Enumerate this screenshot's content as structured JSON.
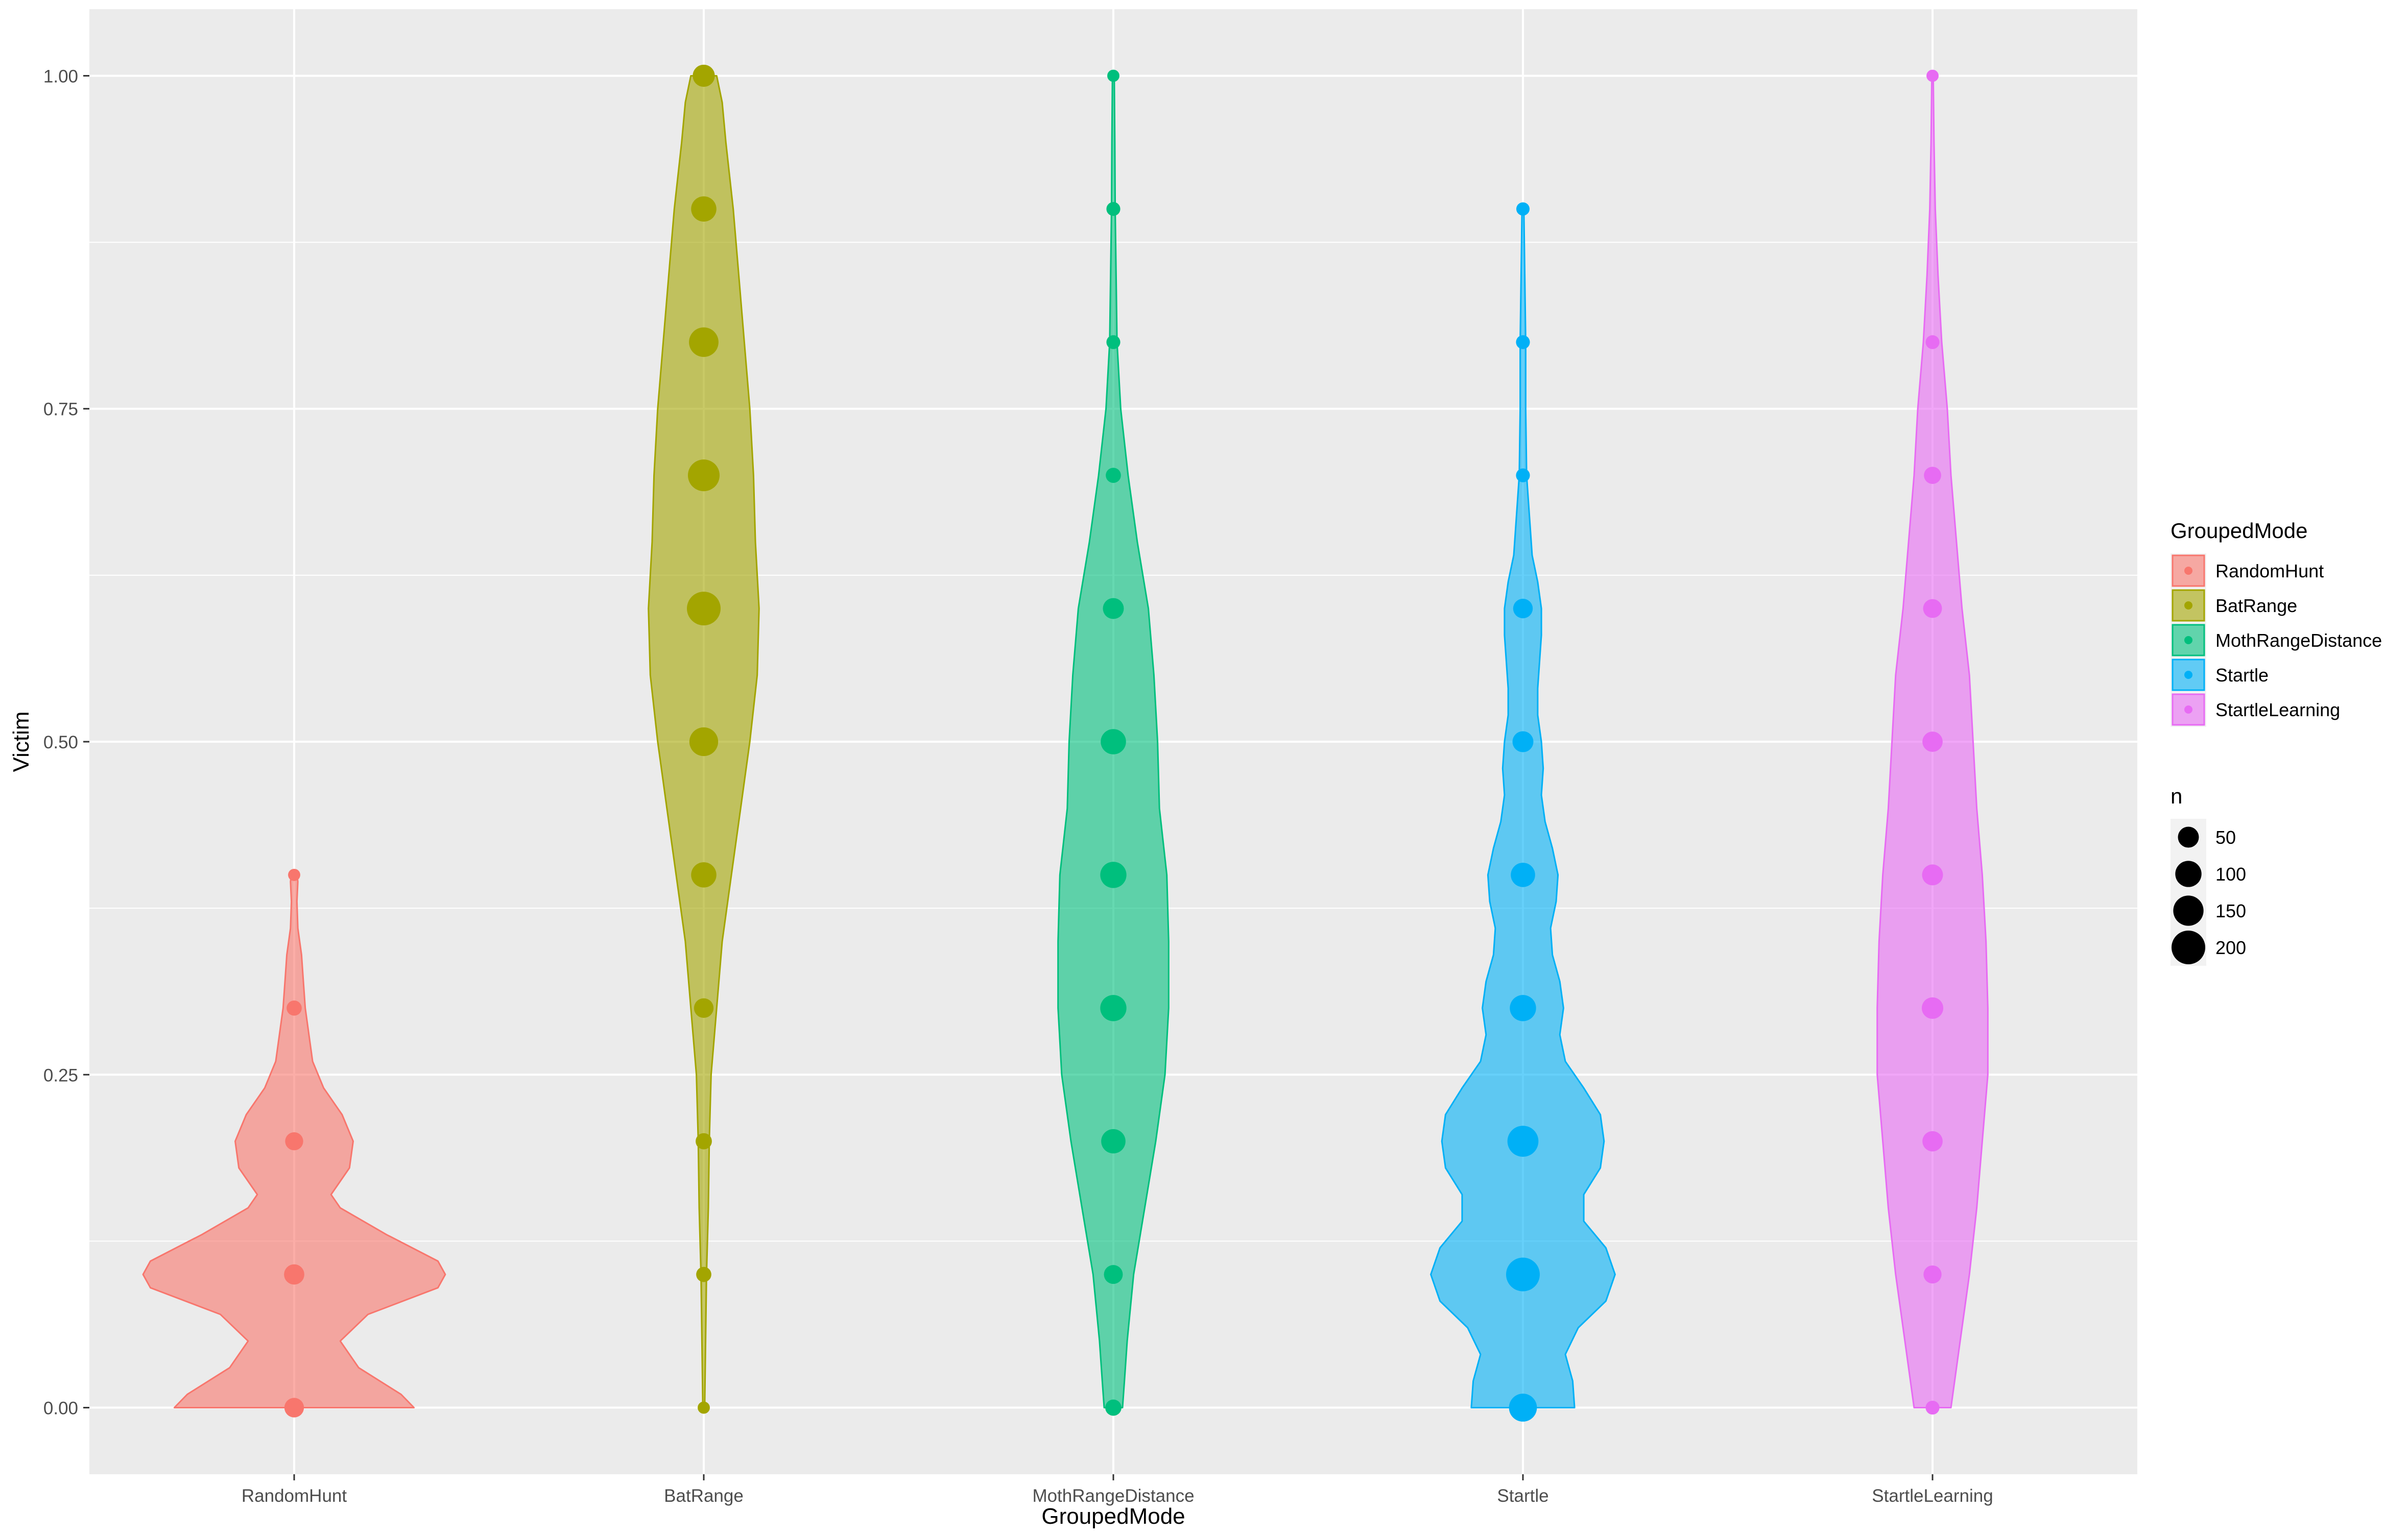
{
  "chart_data": {
    "type": "violin",
    "title": "",
    "xlabel": "GroupedMode",
    "ylabel": "Victim",
    "ylim": [
      -0.05,
      1.05
    ],
    "yticks": [
      0.0,
      0.25,
      0.5,
      0.75,
      1.0
    ],
    "ytick_labels": [
      "0.00",
      "0.25",
      "0.50",
      "0.75",
      "1.00"
    ],
    "grid": true,
    "legend_position": "right",
    "categories": [
      "RandomHunt",
      "BatRange",
      "MothRangeDistance",
      "Startle",
      "StartleLearning"
    ],
    "colors": {
      "RandomHunt": "#F8766D",
      "BatRange": "#A3A500",
      "MothRangeDistance": "#00BF7D",
      "Startle": "#00B0F6",
      "StartleLearning": "#E76BF3"
    },
    "series": [
      {
        "name": "RandomHunt",
        "points": [
          {
            "y": 0.0,
            "n": 40
          },
          {
            "y": 0.1,
            "n": 45
          },
          {
            "y": 0.2,
            "n": 30
          },
          {
            "y": 0.3,
            "n": 15
          },
          {
            "y": 0.4,
            "n": 5
          }
        ],
        "density": [
          [
            0.0,
            0.65
          ],
          [
            0.01,
            0.58
          ],
          [
            0.03,
            0.35
          ],
          [
            0.05,
            0.25
          ],
          [
            0.07,
            0.4
          ],
          [
            0.09,
            0.78
          ],
          [
            0.1,
            0.82
          ],
          [
            0.11,
            0.78
          ],
          [
            0.13,
            0.5
          ],
          [
            0.15,
            0.25
          ],
          [
            0.16,
            0.2
          ],
          [
            0.18,
            0.3
          ],
          [
            0.2,
            0.32
          ],
          [
            0.22,
            0.26
          ],
          [
            0.24,
            0.16
          ],
          [
            0.26,
            0.1
          ],
          [
            0.28,
            0.08
          ],
          [
            0.3,
            0.06
          ],
          [
            0.32,
            0.05
          ],
          [
            0.34,
            0.04
          ],
          [
            0.36,
            0.02
          ],
          [
            0.38,
            0.015
          ],
          [
            0.395,
            0.02
          ],
          [
            0.4,
            0.015
          ]
        ]
      },
      {
        "name": "BatRange",
        "points": [
          {
            "y": 0.0,
            "n": 5
          },
          {
            "y": 0.1,
            "n": 15
          },
          {
            "y": 0.2,
            "n": 20
          },
          {
            "y": 0.3,
            "n": 40
          },
          {
            "y": 0.4,
            "n": 90
          },
          {
            "y": 0.5,
            "n": 130
          },
          {
            "y": 0.6,
            "n": 200
          },
          {
            "y": 0.7,
            "n": 170
          },
          {
            "y": 0.8,
            "n": 140
          },
          {
            "y": 0.9,
            "n": 90
          },
          {
            "y": 1.0,
            "n": 60
          }
        ],
        "density": [
          [
            0.0,
            0.005
          ],
          [
            0.05,
            0.01
          ],
          [
            0.1,
            0.015
          ],
          [
            0.15,
            0.025
          ],
          [
            0.2,
            0.03
          ],
          [
            0.25,
            0.04
          ],
          [
            0.3,
            0.07
          ],
          [
            0.35,
            0.1
          ],
          [
            0.4,
            0.15
          ],
          [
            0.45,
            0.2
          ],
          [
            0.5,
            0.25
          ],
          [
            0.55,
            0.29
          ],
          [
            0.6,
            0.3
          ],
          [
            0.65,
            0.28
          ],
          [
            0.7,
            0.27
          ],
          [
            0.75,
            0.25
          ],
          [
            0.8,
            0.22
          ],
          [
            0.85,
            0.19
          ],
          [
            0.9,
            0.16
          ],
          [
            0.95,
            0.12
          ],
          [
            0.98,
            0.1
          ],
          [
            1.0,
            0.07
          ]
        ]
      },
      {
        "name": "MothRangeDistance",
        "points": [
          {
            "y": 0.0,
            "n": 20
          },
          {
            "y": 0.1,
            "n": 35
          },
          {
            "y": 0.2,
            "n": 80
          },
          {
            "y": 0.3,
            "n": 100
          },
          {
            "y": 0.4,
            "n": 100
          },
          {
            "y": 0.5,
            "n": 90
          },
          {
            "y": 0.6,
            "n": 50
          },
          {
            "y": 0.7,
            "n": 15
          },
          {
            "y": 0.8,
            "n": 10
          },
          {
            "y": 0.9,
            "n": 10
          },
          {
            "y": 1.0,
            "n": 5
          }
        ],
        "density": [
          [
            0.0,
            0.05
          ],
          [
            0.02,
            0.06
          ],
          [
            0.05,
            0.075
          ],
          [
            0.1,
            0.11
          ],
          [
            0.15,
            0.17
          ],
          [
            0.2,
            0.23
          ],
          [
            0.25,
            0.28
          ],
          [
            0.3,
            0.3
          ],
          [
            0.35,
            0.3
          ],
          [
            0.4,
            0.29
          ],
          [
            0.45,
            0.25
          ],
          [
            0.5,
            0.24
          ],
          [
            0.55,
            0.22
          ],
          [
            0.6,
            0.19
          ],
          [
            0.65,
            0.13
          ],
          [
            0.7,
            0.08
          ],
          [
            0.75,
            0.04
          ],
          [
            0.8,
            0.02
          ],
          [
            0.85,
            0.015
          ],
          [
            0.9,
            0.01
          ],
          [
            0.95,
            0.008
          ],
          [
            1.0,
            0.005
          ]
        ]
      },
      {
        "name": "Startle",
        "points": [
          {
            "y": 0.0,
            "n": 120
          },
          {
            "y": 0.1,
            "n": 200
          },
          {
            "y": 0.2,
            "n": 160
          },
          {
            "y": 0.3,
            "n": 100
          },
          {
            "y": 0.4,
            "n": 80
          },
          {
            "y": 0.5,
            "n": 50
          },
          {
            "y": 0.6,
            "n": 40
          },
          {
            "y": 0.7,
            "n": 10
          },
          {
            "y": 0.8,
            "n": 10
          },
          {
            "y": 0.9,
            "n": 8
          }
        ],
        "density": [
          [
            0.0,
            0.28
          ],
          [
            0.02,
            0.27
          ],
          [
            0.04,
            0.23
          ],
          [
            0.06,
            0.3
          ],
          [
            0.08,
            0.45
          ],
          [
            0.1,
            0.5
          ],
          [
            0.12,
            0.45
          ],
          [
            0.14,
            0.33
          ],
          [
            0.16,
            0.33
          ],
          [
            0.18,
            0.42
          ],
          [
            0.2,
            0.44
          ],
          [
            0.22,
            0.42
          ],
          [
            0.24,
            0.33
          ],
          [
            0.26,
            0.23
          ],
          [
            0.28,
            0.2
          ],
          [
            0.3,
            0.22
          ],
          [
            0.32,
            0.2
          ],
          [
            0.34,
            0.16
          ],
          [
            0.36,
            0.15
          ],
          [
            0.38,
            0.18
          ],
          [
            0.4,
            0.19
          ],
          [
            0.42,
            0.16
          ],
          [
            0.44,
            0.12
          ],
          [
            0.46,
            0.1
          ],
          [
            0.48,
            0.11
          ],
          [
            0.5,
            0.1
          ],
          [
            0.52,
            0.08
          ],
          [
            0.54,
            0.08
          ],
          [
            0.56,
            0.09
          ],
          [
            0.58,
            0.1
          ],
          [
            0.6,
            0.1
          ],
          [
            0.62,
            0.08
          ],
          [
            0.64,
            0.05
          ],
          [
            0.66,
            0.04
          ],
          [
            0.68,
            0.03
          ],
          [
            0.7,
            0.02
          ],
          [
            0.75,
            0.015
          ],
          [
            0.8,
            0.015
          ],
          [
            0.85,
            0.01
          ],
          [
            0.9,
            0.005
          ]
        ]
      },
      {
        "name": "StartleLearning",
        "points": [
          {
            "y": 0.0,
            "n": 10
          },
          {
            "y": 0.1,
            "n": 30
          },
          {
            "y": 0.2,
            "n": 45
          },
          {
            "y": 0.3,
            "n": 55
          },
          {
            "y": 0.4,
            "n": 50
          },
          {
            "y": 0.5,
            "n": 45
          },
          {
            "y": 0.6,
            "n": 35
          },
          {
            "y": 0.7,
            "n": 25
          },
          {
            "y": 0.8,
            "n": 10
          },
          {
            "y": 1.0,
            "n": 5
          }
        ],
        "density": [
          [
            0.0,
            0.1
          ],
          [
            0.02,
            0.12
          ],
          [
            0.05,
            0.15
          ],
          [
            0.1,
            0.2
          ],
          [
            0.15,
            0.24
          ],
          [
            0.2,
            0.27
          ],
          [
            0.25,
            0.3
          ],
          [
            0.3,
            0.3
          ],
          [
            0.35,
            0.29
          ],
          [
            0.4,
            0.27
          ],
          [
            0.45,
            0.24
          ],
          [
            0.5,
            0.22
          ],
          [
            0.55,
            0.2
          ],
          [
            0.6,
            0.16
          ],
          [
            0.65,
            0.13
          ],
          [
            0.7,
            0.1
          ],
          [
            0.75,
            0.08
          ],
          [
            0.8,
            0.05
          ],
          [
            0.85,
            0.03
          ],
          [
            0.9,
            0.015
          ],
          [
            0.95,
            0.008
          ],
          [
            1.0,
            0.004
          ]
        ]
      }
    ],
    "legend": {
      "color_title": "GroupedMode",
      "color_items": [
        "RandomHunt",
        "BatRange",
        "MothRangeDistance",
        "Startle",
        "StartleLearning"
      ],
      "size_title": "n",
      "size_items": [
        50,
        100,
        150,
        200
      ]
    }
  }
}
